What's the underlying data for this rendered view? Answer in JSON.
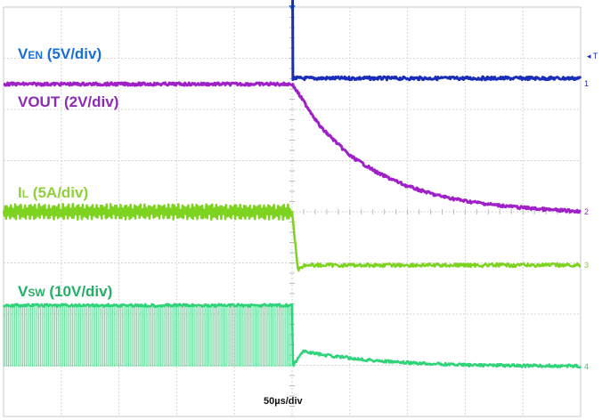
{
  "chart_data": {
    "type": "line",
    "timebase": "50µs/div",
    "x_divisions": 10,
    "y_divisions": 8,
    "grid": true,
    "trigger_marker": "T",
    "channels": [
      {
        "id": "1",
        "label_main": "V",
        "label_sub": "EN",
        "label_scale": " (5V/div)",
        "color": "#1A2DB8",
        "marker": "1",
        "x": [
          0,
          5,
          5,
          10
        ],
        "y": [
          5,
          5,
          0,
          0
        ]
      },
      {
        "id": "2",
        "label_main": "VOUT",
        "label_sub": "",
        "label_scale": " (2V/div)",
        "color": "#A020C8",
        "marker": "2",
        "x": [
          0,
          5,
          5.5,
          6,
          6.5,
          7,
          7.5,
          8,
          8.5,
          9,
          9.5,
          10
        ],
        "y": [
          5,
          5,
          3.3,
          2.2,
          1.5,
          1.0,
          0.65,
          0.42,
          0.27,
          0.16,
          0.07,
          0.02
        ]
      },
      {
        "id": "3",
        "label_main": "I",
        "label_sub": "L",
        "label_scale": " (5A/div)",
        "color": "#7ED321",
        "marker": "3",
        "x": [
          0,
          5,
          5.1,
          5.2,
          10
        ],
        "y": [
          3,
          3,
          -0.25,
          0,
          0
        ]
      },
      {
        "id": "4",
        "label_main": "V",
        "label_sub": "SW",
        "label_scale": " (10V/div)",
        "color": "#2ED37A",
        "marker": "4",
        "x": [
          0,
          5,
          5,
          5.2,
          5.5,
          6,
          6.5,
          7,
          8,
          9,
          10
        ],
        "y": [
          2.15,
          2.15,
          0,
          0.55,
          0.42,
          0.3,
          0.2,
          0.13,
          0.06,
          0.03,
          0.02
        ]
      }
    ]
  }
}
